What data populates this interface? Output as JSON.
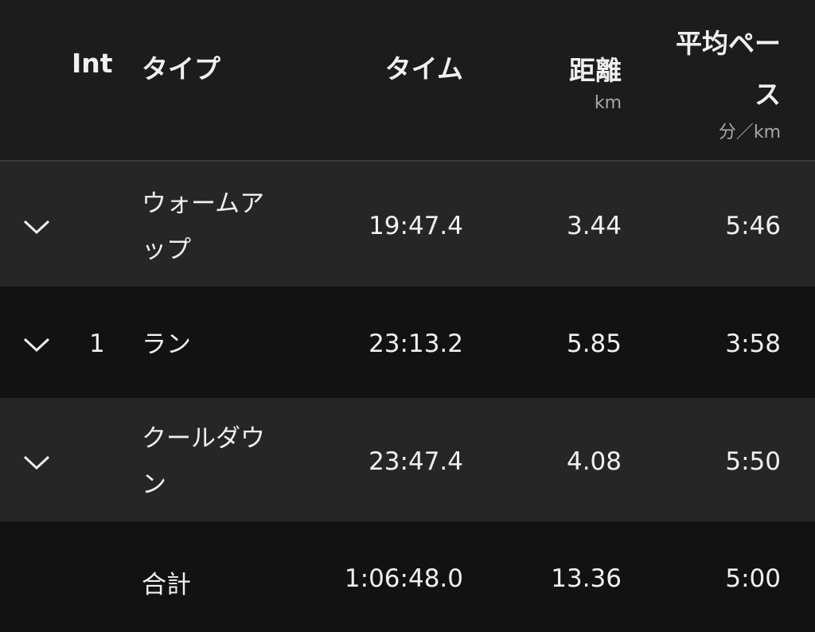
{
  "header": {
    "int": "Int",
    "type": "タイプ",
    "time": "タイム",
    "distance": "距離",
    "distance_unit": "km",
    "pace_line1": "平均ペー",
    "pace_line2": "ス",
    "pace_unit": "分／km"
  },
  "rows": [
    {
      "int": "",
      "type_line1": "ウォームア",
      "type_line2": "ップ",
      "time": "19:47.4",
      "distance": "3.44",
      "pace": "5:46"
    },
    {
      "int": "1",
      "type_line1": "ラン",
      "type_line2": "",
      "time": "23:13.2",
      "distance": "5.85",
      "pace": "3:58"
    },
    {
      "int": "",
      "type_line1": "クールダウ",
      "type_line2": "ン",
      "time": "23:47.4",
      "distance": "4.08",
      "pace": "5:50"
    }
  ],
  "total": {
    "label": "合計",
    "time": "1:06:48.0",
    "distance": "13.36",
    "pace": "5:00"
  },
  "colors": {
    "header_bg": "#1c1c1c",
    "row_light": "#262626",
    "row_dark": "#121212",
    "text": "#f0f0f0",
    "unit": "#a8a8a8"
  }
}
